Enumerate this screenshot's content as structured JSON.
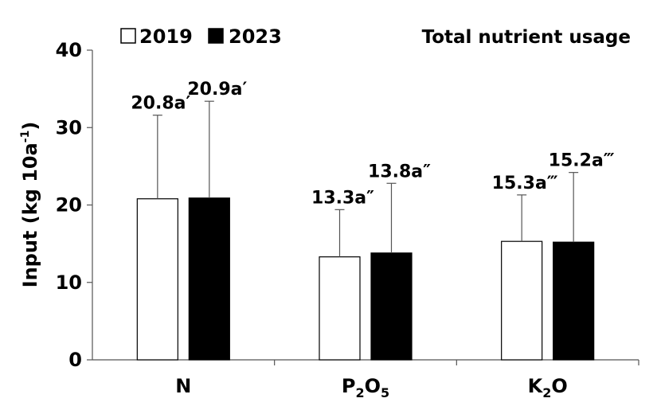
{
  "chart_data": {
    "type": "bar",
    "title": "Total nutrient usage",
    "xlabel": "",
    "ylabel": "Input (kg 10a",
    "ylabel_sup": "-1",
    "ylabel_close": ")",
    "ylim": [
      0,
      40
    ],
    "yticks": [
      "0",
      "10",
      "20",
      "30",
      "40"
    ],
    "yticks_values": [
      0,
      10,
      20,
      30,
      40
    ],
    "categories": [
      {
        "base": "N",
        "sub": "",
        "base2": "",
        "sub2": ""
      },
      {
        "base": "P",
        "sub": "2",
        "base2": "O",
        "sub2": "5"
      },
      {
        "base": "K",
        "sub": "2",
        "base2": "O",
        "sub2": ""
      }
    ],
    "series": [
      {
        "name": "2019",
        "fill": "#ffffff",
        "values": [
          20.8,
          13.3,
          15.3
        ],
        "errors": [
          10.8,
          6.1,
          6.0
        ],
        "labels": [
          "20.8a′",
          "13.3a″",
          "15.3a‴"
        ]
      },
      {
        "name": "2023",
        "fill": "#000000",
        "values": [
          20.9,
          13.8,
          15.2
        ],
        "errors": [
          12.5,
          9.0,
          9.0
        ],
        "labels": [
          "20.9a′",
          "13.8a″",
          "15.2a‴"
        ]
      }
    ]
  }
}
